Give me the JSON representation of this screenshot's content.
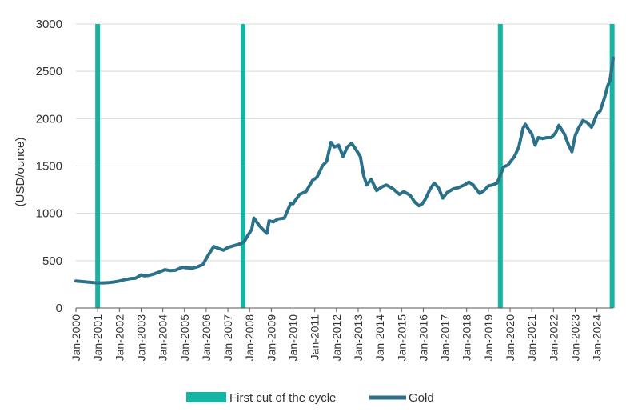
{
  "chart_data": {
    "type": "line",
    "title": "",
    "xlabel": "",
    "ylabel": "(USD/ounce)",
    "ylim": [
      0,
      3000
    ],
    "yticks": [
      "0",
      "500",
      "1000",
      "1500",
      "2000",
      "2500",
      "3000"
    ],
    "xticks": [
      "Jan-2000",
      "Jan-2001",
      "Jan-2002",
      "Jan-2003",
      "Jan-2004",
      "Jan-2005",
      "Jan-2006",
      "Jan-2007",
      "Jan-2008",
      "Jan-2009",
      "Jan-2010",
      "Jan-2011",
      "Jan-2012",
      "Jan-2013",
      "Jan-2014",
      "Jan-2015",
      "Jan-2016",
      "Jan-2017",
      "Jan-2018",
      "Jan-2019",
      "Jan-2020",
      "Jan-2021",
      "Jan-2022",
      "Jan-2023",
      "Jan-2024"
    ],
    "xlim": [
      2000.0,
      2024.75
    ],
    "grid": "horizontal",
    "legend_position": "bottom",
    "colors": {
      "first_cut": "#17b3a3",
      "gold": "#2a7189",
      "grid": "#d9d9d9",
      "axis": "#555555"
    },
    "first_cuts": {
      "name": "First cut of the cycle",
      "dates": [
        2001.0,
        2007.7,
        2019.55,
        2024.7
      ]
    },
    "series": [
      {
        "name": "Gold",
        "x": [
          2000.0,
          2000.25,
          2000.5,
          2000.75,
          2001.0,
          2001.25,
          2001.5,
          2001.75,
          2002.0,
          2002.25,
          2002.5,
          2002.75,
          2003.0,
          2003.15,
          2003.35,
          2003.6,
          2003.9,
          2004.1,
          2004.35,
          2004.6,
          2004.9,
          2005.1,
          2005.35,
          2005.6,
          2005.85,
          2006.1,
          2006.35,
          2006.55,
          2006.8,
          2007.0,
          2007.3,
          2007.6,
          2007.75,
          2007.9,
          2008.1,
          2008.2,
          2008.45,
          2008.65,
          2008.8,
          2008.9,
          2009.1,
          2009.3,
          2009.6,
          2009.9,
          2010.0,
          2010.3,
          2010.6,
          2010.9,
          2011.1,
          2011.35,
          2011.55,
          2011.65,
          2011.75,
          2011.9,
          2012.1,
          2012.3,
          2012.5,
          2012.7,
          2012.85,
          2013.1,
          2013.25,
          2013.4,
          2013.6,
          2013.85,
          2014.1,
          2014.3,
          2014.6,
          2014.9,
          2015.1,
          2015.4,
          2015.6,
          2015.8,
          2015.95,
          2016.1,
          2016.3,
          2016.5,
          2016.7,
          2016.9,
          2017.1,
          2017.4,
          2017.6,
          2017.9,
          2018.1,
          2018.3,
          2018.6,
          2018.8,
          2019.0,
          2019.2,
          2019.4,
          2019.55,
          2019.7,
          2019.9,
          2020.1,
          2020.2,
          2020.4,
          2020.6,
          2020.7,
          2020.9,
          2021.0,
          2021.15,
          2021.3,
          2021.5,
          2021.7,
          2021.9,
          2022.1,
          2022.25,
          2022.5,
          2022.7,
          2022.85,
          2023.0,
          2023.15,
          2023.35,
          2023.55,
          2023.75,
          2023.85,
          2024.0,
          2024.15,
          2024.35,
          2024.5,
          2024.6,
          2024.75
        ],
        "y": [
          285,
          280,
          275,
          270,
          265,
          265,
          268,
          275,
          285,
          300,
          310,
          315,
          350,
          340,
          345,
          360,
          385,
          405,
          395,
          400,
          430,
          425,
          420,
          435,
          460,
          560,
          650,
          630,
          610,
          640,
          660,
          680,
          700,
          760,
          830,
          950,
          870,
          820,
          790,
          920,
          910,
          940,
          950,
          1110,
          1100,
          1200,
          1230,
          1350,
          1380,
          1500,
          1550,
          1650,
          1750,
          1700,
          1720,
          1600,
          1700,
          1740,
          1690,
          1600,
          1400,
          1300,
          1360,
          1240,
          1280,
          1300,
          1260,
          1200,
          1230,
          1190,
          1120,
          1080,
          1100,
          1150,
          1250,
          1320,
          1270,
          1160,
          1220,
          1260,
          1270,
          1300,
          1330,
          1300,
          1210,
          1240,
          1290,
          1300,
          1320,
          1400,
          1490,
          1510,
          1570,
          1600,
          1700,
          1900,
          1940,
          1870,
          1840,
          1720,
          1800,
          1790,
          1800,
          1800,
          1850,
          1930,
          1840,
          1720,
          1650,
          1820,
          1900,
          1980,
          1960,
          1910,
          1960,
          2050,
          2080,
          2220,
          2350,
          2400,
          2640
        ]
      }
    ]
  },
  "legend": {
    "first_cut_label": "First cut of the cycle",
    "gold_label": "Gold"
  }
}
